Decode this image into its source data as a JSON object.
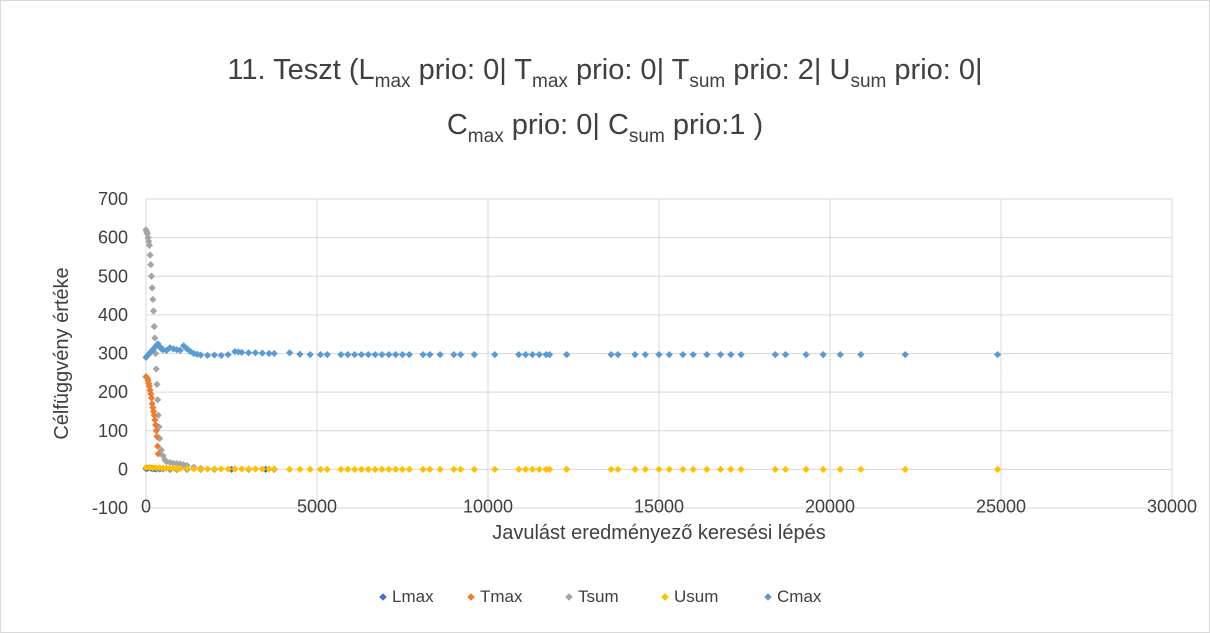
{
  "chart_data": {
    "type": "scatter",
    "title": {
      "line1": [
        {
          "text": "11. Teszt (L",
          "sub": false
        },
        {
          "text": "max",
          "sub": true
        },
        {
          "text": " prio: 0| T",
          "sub": false
        },
        {
          "text": "max",
          "sub": true
        },
        {
          "text": " prio: 0| T",
          "sub": false
        },
        {
          "text": "sum",
          "sub": true
        },
        {
          "text": " prio: 2| U",
          "sub": false
        },
        {
          "text": "sum",
          "sub": true
        },
        {
          "text": " prio: 0|",
          "sub": false
        }
      ],
      "line2": [
        {
          "text": "C",
          "sub": false
        },
        {
          "text": "max",
          "sub": true
        },
        {
          "text": " prio: 0| C",
          "sub": false
        },
        {
          "text": "sum",
          "sub": true
        },
        {
          "text": " prio:1 )",
          "sub": false
        }
      ]
    },
    "xlabel": "Javulást eredményező keresési lépés",
    "ylabel": "Célfüggvény értéke",
    "xlim": [
      0,
      30000
    ],
    "ylim": [
      -100,
      700
    ],
    "x_ticks": [
      0,
      5000,
      10000,
      15000,
      20000,
      25000,
      30000
    ],
    "y_ticks": [
      -100,
      0,
      100,
      200,
      300,
      400,
      500,
      600,
      700
    ],
    "grid": true,
    "legend_position": "bottom",
    "colors": {
      "Lmax": "#4472c4",
      "Tmax": "#ed7d31",
      "Tsum": "#a5a5a5",
      "Usum": "#ffc000",
      "Cmax": "#5b9bd5",
      "grid": "#d9d9d9",
      "text": "#404040"
    },
    "series": [
      {
        "name": "Lmax",
        "x": [
          0,
          50,
          100,
          150,
          200,
          250,
          300,
          400,
          500,
          700,
          900,
          1200,
          1600,
          2000,
          2500,
          3000,
          3500,
          3750
        ],
        "y": [
          2,
          3,
          4,
          3,
          2,
          2,
          1,
          1,
          1,
          0,
          0,
          0,
          0,
          0,
          0,
          0,
          0,
          0
        ]
      },
      {
        "name": "Tmax",
        "x": [
          0,
          20,
          40,
          60,
          80,
          100,
          120,
          140,
          160,
          180,
          200,
          220,
          240,
          260,
          280,
          300,
          320,
          340,
          360
        ],
        "y": [
          240,
          238,
          236,
          230,
          222,
          215,
          205,
          195,
          185,
          170,
          160,
          150,
          140,
          128,
          115,
          100,
          85,
          60,
          40
        ]
      },
      {
        "name": "Tsum",
        "x": [
          0,
          20,
          40,
          60,
          80,
          100,
          120,
          140,
          160,
          180,
          200,
          220,
          240,
          260,
          280,
          300,
          320,
          340,
          360,
          380,
          400,
          450,
          500,
          550,
          600,
          700,
          800,
          900,
          1000,
          1100,
          1200,
          1400,
          1600
        ],
        "y": [
          620,
          615,
          610,
          600,
          590,
          580,
          555,
          530,
          500,
          470,
          440,
          410,
          370,
          340,
          300,
          260,
          220,
          180,
          140,
          110,
          80,
          50,
          35,
          25,
          20,
          18,
          16,
          15,
          14,
          12,
          10,
          6,
          3
        ]
      },
      {
        "name": "Usum",
        "x": [
          0,
          100,
          200,
          300,
          400,
          500,
          600,
          700,
          800,
          900,
          1000,
          1200,
          1400,
          1600,
          1800,
          2000,
          2200,
          2400,
          2600,
          2800,
          3000,
          3200,
          3400,
          3600,
          3750,
          4200,
          4500,
          4800,
          5100,
          5300,
          5700,
          5900,
          6100,
          6300,
          6500,
          6700,
          6900,
          7100,
          7300,
          7500,
          7700,
          8100,
          8300,
          8600,
          9000,
          9200,
          9600,
          10200,
          10900,
          11100,
          11300,
          11500,
          11700,
          11800,
          12300,
          13600,
          13800,
          14300,
          14600,
          15000,
          15300,
          15700,
          16000,
          16400,
          16800,
          17100,
          17400,
          18400,
          18700,
          19300,
          19800,
          20300,
          20900,
          22200,
          24900
        ],
        "y": [
          5,
          5,
          4,
          4,
          4,
          3,
          3,
          3,
          3,
          2,
          2,
          2,
          1,
          1,
          1,
          1,
          1,
          1,
          1,
          1,
          1,
          1,
          1,
          1,
          1,
          0,
          0,
          0,
          0,
          0,
          0,
          0,
          0,
          0,
          0,
          0,
          0,
          0,
          0,
          0,
          0,
          0,
          0,
          0,
          0,
          0,
          0,
          0,
          0,
          0,
          0,
          0,
          0,
          0,
          0,
          0,
          0,
          0,
          0,
          0,
          0,
          0,
          0,
          0,
          0,
          0,
          0,
          0,
          0,
          0,
          0,
          0,
          0,
          0,
          0
        ]
      },
      {
        "name": "Cmax",
        "x": [
          0,
          50,
          100,
          150,
          200,
          250,
          300,
          350,
          400,
          450,
          500,
          600,
          700,
          800,
          900,
          1000,
          1100,
          1200,
          1300,
          1400,
          1500,
          1600,
          1800,
          2000,
          2200,
          2400,
          2600,
          2700,
          2800,
          3000,
          3200,
          3400,
          3600,
          3750,
          4200,
          4500,
          4800,
          5100,
          5300,
          5700,
          5900,
          6100,
          6300,
          6500,
          6700,
          6900,
          7100,
          7300,
          7500,
          7700,
          8100,
          8300,
          8600,
          9000,
          9200,
          9600,
          10200,
          10900,
          11100,
          11300,
          11500,
          11700,
          11800,
          12300,
          13600,
          13800,
          14300,
          14600,
          15000,
          15300,
          15700,
          16000,
          16400,
          16800,
          17100,
          17400,
          18400,
          18700,
          19300,
          19800,
          20300,
          20900,
          22200,
          24900
        ],
        "y": [
          290,
          295,
          300,
          305,
          310,
          315,
          320,
          325,
          318,
          312,
          310,
          308,
          315,
          312,
          310,
          308,
          320,
          312,
          305,
          300,
          298,
          296,
          295,
          296,
          295,
          297,
          305,
          304,
          303,
          302,
          302,
          301,
          300,
          300,
          302,
          298,
          297,
          297,
          297,
          297,
          297,
          297,
          297,
          297,
          297,
          297,
          297,
          297,
          297,
          297,
          297,
          297,
          297,
          297,
          297,
          297,
          297,
          297,
          297,
          297,
          297,
          297,
          297,
          297,
          297,
          297,
          297,
          297,
          297,
          297,
          297,
          297,
          297,
          297,
          297,
          297,
          297,
          297,
          297,
          297,
          297,
          297,
          297,
          297
        ]
      }
    ]
  }
}
